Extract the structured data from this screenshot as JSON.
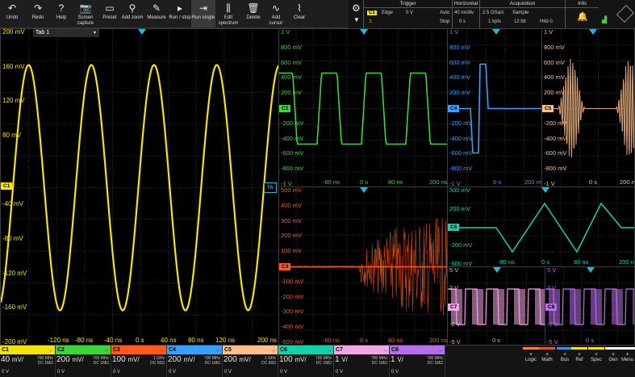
{
  "toolbar": [
    {
      "name": "undo-button",
      "icon": "undo-icon",
      "glyph": "↶",
      "label": "Undo"
    },
    {
      "name": "redo-button",
      "icon": "redo-icon",
      "glyph": "↷",
      "label": "Redo"
    },
    {
      "name": "help-button",
      "icon": "help-icon",
      "glyph": "?",
      "label": "Help"
    },
    {
      "name": "screen-capture-button",
      "icon": "camera-icon",
      "glyph": "📷",
      "label": "Screen\ncapture"
    },
    {
      "name": "preset-button",
      "icon": "preset-icon",
      "glyph": "▭",
      "label": "Preset"
    },
    {
      "name": "add-zoom-button",
      "icon": "zoom-icon",
      "glyph": "⚲",
      "label": "Add zoom"
    },
    {
      "name": "measure-button",
      "icon": "measure-icon",
      "glyph": "✎",
      "label": "Measure"
    },
    {
      "name": "run-stop-button",
      "icon": "play-icon",
      "glyph": "▸",
      "label": "Run / stop"
    },
    {
      "name": "run-single-button",
      "icon": "run-single-icon",
      "glyph": "⇥",
      "label": "Run single"
    },
    {
      "name": "edit-spectrum-button",
      "icon": "spectrum-icon",
      "glyph": "⫼",
      "label": "Edit\nspectrum"
    },
    {
      "name": "delete-button",
      "icon": "trash-icon",
      "glyph": "🗑",
      "label": "Delete"
    },
    {
      "name": "add-cursor-button",
      "icon": "cursor-icon",
      "glyph": "∿",
      "label": "Add\ncursor"
    },
    {
      "name": "clear-button",
      "icon": "broom-icon",
      "glyph": "⌇",
      "label": "Clear"
    }
  ],
  "settings": {
    "trigger": {
      "header": "Trigger",
      "source": "C1",
      "type": "Edge",
      "level": "0 V",
      "mode": "Auto",
      "state": "Stop"
    },
    "horizontal": {
      "header": "Horizontal",
      "timebase": "40 ns/div",
      "position": "0 s"
    },
    "acquisition": {
      "header": "Acquisition",
      "rate": "2.5 GSa/s",
      "mode": "Sample",
      "length": "1 kpts",
      "resolution": "12 bit",
      "hd": "HiId 0"
    },
    "info": {
      "header": "Info"
    }
  },
  "main": {
    "tab_label": "Tab 1",
    "y_labels": [
      "200 mV",
      "160 mV",
      "120 mV",
      "80 mV",
      "",
      "-40 mV",
      "-80 mV",
      "-120 mV",
      "-160 mV",
      "-200 mV"
    ],
    "x_labels": [
      "-120 ns",
      "-80 ns",
      "-40 ns",
      "0 s",
      "40 ns",
      "80 ns",
      "120 ns",
      "200 ns"
    ],
    "ch_marker": "C1",
    "ta_marker": "TA"
  },
  "tiles": {
    "c2": {
      "y_labels": [
        "1 V",
        "800 mV",
        "600 mV",
        "400 mV",
        "200 mV",
        "",
        "-200 mV",
        "-400 mV",
        "-600 mV",
        "-800 mV",
        "-1 V"
      ],
      "x_labels": [
        "-80 ns",
        "0 s",
        "80 ns",
        "200 ns"
      ],
      "marker": "C2"
    },
    "c4": {
      "y_labels": [
        "1 V",
        "800 mV",
        "600 mV",
        "400 mV",
        "200 mV",
        "",
        "-200 mV",
        "-400 mV",
        "-600 mV",
        "-800 mV",
        "-1 V"
      ],
      "x_labels": [
        "0 s",
        "200 ns"
      ],
      "marker": "C4"
    },
    "c5": {
      "y_labels": [
        "1 V",
        "800 mV",
        "600 mV",
        "400 mV",
        "200 mV",
        "",
        "-200 mV",
        "-400 mV",
        "-600 mV",
        "-800 mV",
        "-1 V"
      ],
      "x_labels": [
        "0 s",
        "200 n"
      ],
      "marker": "C5"
    },
    "c3": {
      "y_labels": [
        "500 mV",
        "400 mV",
        "300 mV",
        "200 mV",
        "100 mV",
        "",
        "-100 mV",
        "-200 mV",
        "-300 mV",
        "-400 mV",
        "-500 mV"
      ],
      "x_labels": [
        "-80 ns",
        "0 s",
        "80 ns",
        "200 ns"
      ],
      "marker": "C3"
    },
    "c6": {
      "y_labels": [
        "500 mV",
        "200 mV",
        "",
        "-200 mV",
        "-500 mV"
      ],
      "x_labels": [
        "-80 ns",
        "0 s",
        "80 ns",
        "200 n"
      ],
      "marker": "C6"
    },
    "c7": {
      "y_labels": [
        "5 V",
        "2 V",
        "",
        "-2 V",
        "-5 V"
      ],
      "x_labels": [
        "0 s"
      ],
      "marker": "C7"
    },
    "c8": {
      "y_labels": [
        "5 V",
        "2 V",
        "",
        "-2 V",
        "-5 V"
      ],
      "x_labels": [
        "0 s"
      ],
      "marker": "C8"
    }
  },
  "channels": [
    {
      "name": "C1",
      "color": "#f4e30c",
      "scale": "40",
      "unit": "mV/",
      "bw": "700 MHz",
      "cpl": "DC 1MΩ",
      "offset": "0 V"
    },
    {
      "name": "C2",
      "color": "#3cd63c",
      "scale": "200",
      "unit": "mV/",
      "bw": "700 MHz",
      "cpl": "DC 1MΩ",
      "offset": "0 V"
    },
    {
      "name": "C3",
      "color": "#ff5a1e",
      "scale": "100",
      "unit": "mV/",
      "bw": "1 GHz",
      "cpl": "DC 50Ω",
      "offset": "0 V"
    },
    {
      "name": "C4",
      "color": "#3aa0ff",
      "scale": "200",
      "unit": "mV/",
      "bw": "700 MHz",
      "cpl": "DC 1MΩ",
      "offset": "0 V"
    },
    {
      "name": "C5",
      "color": "#ffbf8a",
      "scale": "200",
      "unit": "mV/",
      "bw": "1 GHz",
      "cpl": "DC 50Ω",
      "offset": "0 V"
    },
    {
      "name": "C6",
      "color": "#14d2a8",
      "scale": "100",
      "unit": "mV/",
      "bw": "700 MHz",
      "cpl": "DC 1MΩ",
      "offset": "0 V"
    },
    {
      "name": "C7",
      "color": "#f2a6e8",
      "scale": "1",
      "unit": "V/",
      "bw": "700 MHz",
      "cpl": "DC 1MΩ",
      "offset": "0 V"
    },
    {
      "name": "C8",
      "color": "#b76fe8",
      "scale": "1",
      "unit": "V/",
      "bw": "700 MHz",
      "cpl": "DC 1MΩ",
      "offset": "0 V"
    }
  ],
  "right_buttons": [
    {
      "name": "logic-button",
      "label": "Logic",
      "color": "#f08c1e"
    },
    {
      "name": "math-button",
      "label": "Math",
      "color": "#e05a1e"
    },
    {
      "name": "bus-button",
      "label": "Bus",
      "color": "#3a8ef0"
    },
    {
      "name": "ref-button",
      "label": "Ref",
      "color": "#f4e30c"
    },
    {
      "name": "spec-button",
      "label": "Spec",
      "color": "#f4e30c"
    },
    {
      "name": "gen-button",
      "label": "Gen",
      "color": "#ffffff"
    },
    {
      "name": "menu-button",
      "label": "Menu",
      "color": "#ffffff"
    }
  ]
}
